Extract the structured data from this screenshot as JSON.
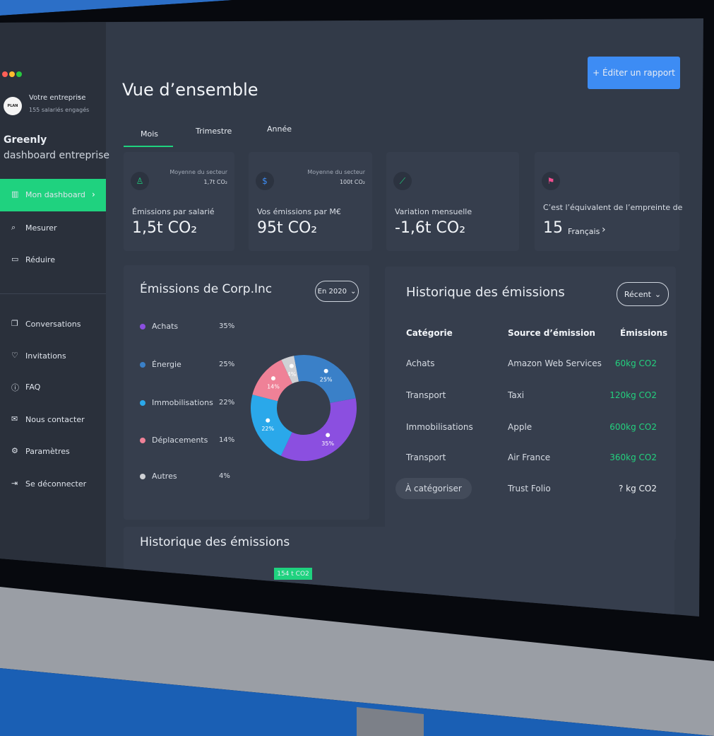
{
  "sidebar": {
    "company": "Votre entreprise",
    "employees": "155 salariés engagés",
    "logo": "PLAN",
    "brand": "Greenly",
    "subtitle": "dashboard entreprise",
    "nav_main": [
      "Mon dashboard",
      "Mesurer",
      "Réduire"
    ],
    "nav_secondary": [
      "Conversations",
      "Invitations",
      "FAQ",
      "Nous contacter",
      "Paramètres",
      "Se déconnecter"
    ]
  },
  "header": {
    "title": "Vue d’ensemble",
    "button": "+ Éditer un rapport",
    "tabs": [
      "Mois",
      "Trimestre",
      "Année"
    ]
  },
  "kpis": [
    {
      "sector_label": "Moyenne du secteur",
      "sector_value": "1,7t CO₂",
      "label": "Émissions par salarié",
      "value": "1,5t CO₂"
    },
    {
      "sector_label": "Moyenne du secteur",
      "sector_value": "100t CO₂",
      "label": "Vos émissions par M€",
      "value": "95t CO₂"
    },
    {
      "label": "Variation mensuelle",
      "value": "-1,6t CO₂"
    },
    {
      "label": "C’est l’équivalent de l’empreinte de",
      "value": "15",
      "unit": "Français"
    }
  ],
  "emissions_card": {
    "title": "Émissions de Corp.Inc",
    "filter": "En 2020",
    "chart": {
      "type": "donut",
      "categories": [
        "Achats",
        "Énergie",
        "Immobilisations",
        "Déplacements",
        "Autres"
      ],
      "values": [
        35,
        25,
        22,
        14,
        4
      ],
      "value_labels": [
        "35%",
        "25%",
        "22%",
        "14%",
        "4%"
      ],
      "colors": [
        "#8b4fe0",
        "#3a80c8",
        "#2aa8ea",
        "#ef8197",
        "#cfd1d5"
      ]
    }
  },
  "history_card": {
    "title": "Historique des émissions",
    "filter": "Récent",
    "columns": [
      "Catégorie",
      "Source d’émission",
      "Émissions"
    ],
    "rows": [
      [
        "Achats",
        "Amazon Web Services",
        "60kg CO2"
      ],
      [
        "Transport",
        "Taxi",
        "120kg CO2"
      ],
      [
        "Immobilisations",
        "Apple",
        "600kg CO2"
      ],
      [
        "Transport",
        "Air France",
        "360kg CO2"
      ],
      [
        "À catégoriser",
        "Trust Folio",
        "? kg CO2"
      ]
    ]
  },
  "bottom_card": {
    "title": "Historique des émissions",
    "badge": "154 t CO2"
  }
}
